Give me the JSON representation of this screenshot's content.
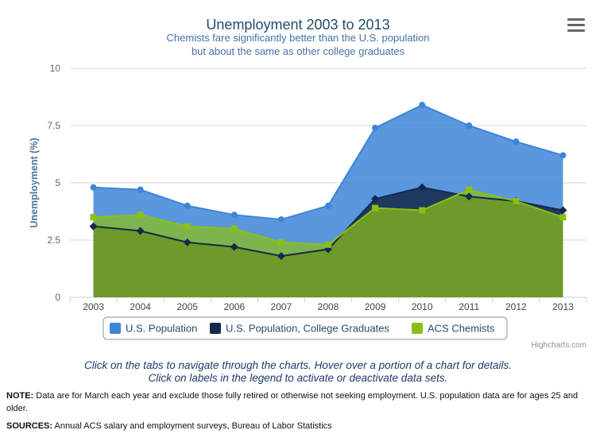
{
  "chart_data": {
    "type": "area",
    "title": "Unemployment 2003 to 2013",
    "subtitle_lines": [
      "Chemists fare significantly better than the U.S. population",
      "but about the same as other college graduates"
    ],
    "xlabel": "",
    "ylabel": "Unemployment (%)",
    "ylim": [
      0,
      10
    ],
    "y_ticks": [
      0,
      2.5,
      5,
      7.5,
      10
    ],
    "y_tick_labels": [
      "0",
      "2.5",
      "5",
      "7.5",
      "10"
    ],
    "categories": [
      "2003",
      "2004",
      "2005",
      "2006",
      "2007",
      "2008",
      "2009",
      "2010",
      "2011",
      "2012",
      "2013"
    ],
    "grid": true,
    "legend_position": "bottom-center",
    "series": [
      {
        "name": "U.S. Population",
        "color": "#3d85d8",
        "marker": "circle",
        "values": [
          4.8,
          4.7,
          4.0,
          3.6,
          3.4,
          4.0,
          7.4,
          8.4,
          7.5,
          6.8,
          6.2
        ]
      },
      {
        "name": "U.S. Population, College Graduates",
        "color": "#14294a",
        "marker": "diamond",
        "values": [
          3.1,
          2.9,
          2.4,
          2.2,
          1.8,
          2.1,
          4.3,
          4.8,
          4.4,
          4.2,
          3.8
        ]
      },
      {
        "name": "ACS Chemists",
        "color": "#8cbf15",
        "marker": "square",
        "values": [
          3.5,
          3.6,
          3.1,
          3.0,
          2.4,
          2.3,
          3.9,
          3.8,
          4.7,
          4.2,
          3.5
        ]
      }
    ]
  },
  "ui": {
    "credits": "Highcharts.com",
    "menu_icon": "hamburger-menu-icon",
    "instructions": [
      "Click on the tabs to navigate through the charts. Hover over a portion of a chart for details.",
      "Click on labels in the legend to activate or deactivate data sets."
    ],
    "note_label": "NOTE:",
    "note_text": " Data are for March each year and exclude those fully retired or otherwise not seeking employment. U.S. population data are for ages 25 and older.",
    "sources_label": "SOURCES:",
    "sources_text": " Annual ACS salary and employment surveys, Bureau of Labor Statistics"
  }
}
